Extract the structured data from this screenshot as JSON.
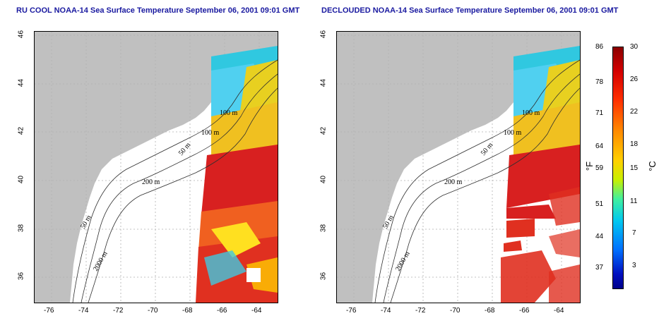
{
  "panels": [
    {
      "title": "RU COOL NOAA-14 Sea Surface Temperature September 06, 2001 09:01 GMT"
    },
    {
      "title": "DECLOUDED NOAA-14 Sea Surface Temperature September 06, 2001 09:01 GMT"
    }
  ],
  "axes": {
    "x_ticks": [
      "-76",
      "-74",
      "-72",
      "-70",
      "-68",
      "-66",
      "-64"
    ],
    "y_ticks": [
      "46",
      "44",
      "42",
      "40",
      "38",
      "36"
    ]
  },
  "contours": {
    "left": [
      "100 m",
      "100 m",
      "50 m",
      "200 m",
      "50 m",
      "2000 m"
    ],
    "right": [
      "100 m",
      "100 m",
      "50 m",
      "200 m",
      "50 m",
      "2000 m"
    ]
  },
  "colorbar": {
    "fahrenheit": [
      "86",
      "78",
      "71",
      "64",
      "59",
      "51",
      "44",
      "37"
    ],
    "celsius": [
      "30",
      "26",
      "22",
      "18",
      "15",
      "11",
      "7",
      "3"
    ],
    "unit_f": "°F",
    "unit_c": "°C"
  },
  "colors": {
    "land": "#c0c0c0",
    "title": "#1a1aa0",
    "grid": "#b0b0b0"
  }
}
